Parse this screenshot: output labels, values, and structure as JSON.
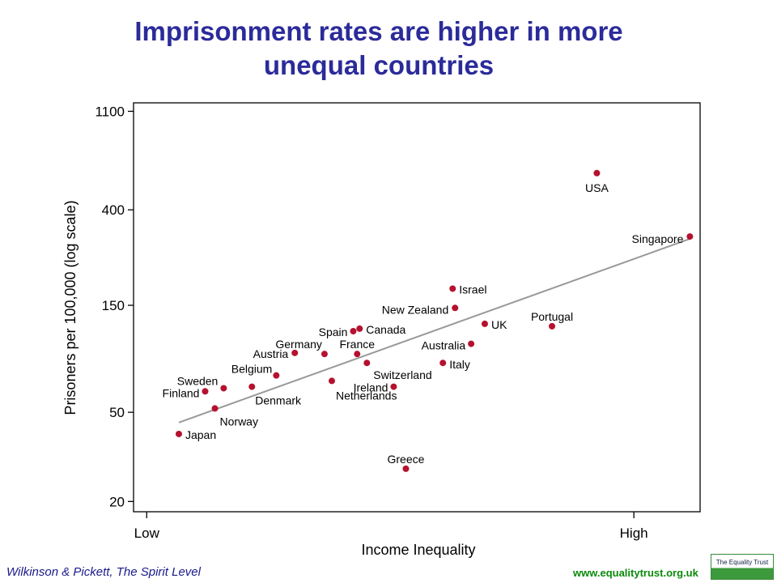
{
  "chart_data": {
    "type": "scatter",
    "title": "Imprisonment rates are higher in more unequal countries",
    "x_label": "Income Inequality",
    "y_label": "Prisoners per 100,000 (log scale)",
    "log_y": true,
    "color": "#b5112f",
    "labels": [
      "USA",
      "Singapore",
      "Israel",
      "New Zealand",
      "UK",
      "Portugal",
      "Spain",
      "Canada",
      "Australia",
      "Germany",
      "Austria",
      "France",
      "Switzerland",
      "Italy",
      "Belgium",
      "Netherlands",
      "Ireland",
      "Denmark",
      "Sweden",
      "Finland",
      "Norway",
      "Japan",
      "Greece"
    ],
    "x": [
      0.924,
      1.115,
      0.628,
      0.633,
      0.694,
      0.832,
      0.424,
      0.437,
      0.666,
      0.365,
      0.304,
      0.432,
      0.452,
      0.608,
      0.266,
      0.38,
      0.507,
      0.216,
      0.158,
      0.12,
      0.14,
      0.066,
      0.532
    ],
    "values": [
      583,
      304,
      178,
      146,
      124,
      121,
      115,
      118,
      101,
      91,
      92,
      91,
      83,
      83,
      73,
      69,
      65,
      65,
      64,
      62,
      52,
      40,
      28
    ],
    "trend": {
      "color": "#999999",
      "x": [
        0.066,
        1.115
      ],
      "y": [
        45,
        297
      ]
    },
    "xlim": [
      -0.027,
      1.136
    ],
    "ylim": [
      18,
      1200
    ],
    "xticks": [
      {
        "value": 0,
        "label": "Low"
      },
      {
        "value": 1,
        "label": "High"
      }
    ],
    "yticks": [
      20,
      50,
      150,
      400,
      1100
    ]
  },
  "footer": {
    "source": "Wilkinson & Pickett, The Spirit Level",
    "url": "www.equalitytrust.org.uk",
    "logo": "The Equality Trust"
  }
}
